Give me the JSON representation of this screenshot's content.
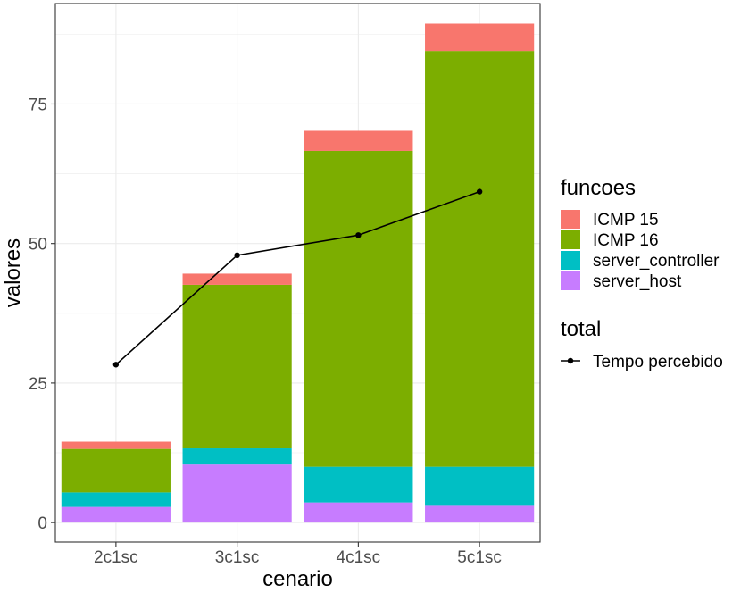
{
  "chart_data": {
    "type": "bar",
    "stacked": true,
    "xlabel": "cenario",
    "ylabel": "valores",
    "categories": [
      "2c1sc",
      "3c1sc",
      "4c1sc",
      "5c1sc"
    ],
    "ylim": [
      -3.5,
      93
    ],
    "yticks": [
      0,
      25,
      50,
      75
    ],
    "grid": true,
    "legend_position": "right",
    "series": [
      {
        "name": "server_host",
        "color": "#C77CFF",
        "values": [
          2.8,
          10.4,
          3.6,
          3.0
        ]
      },
      {
        "name": "server_controller",
        "color": "#00BFC4",
        "values": [
          2.6,
          2.9,
          6.4,
          7.0
        ]
      },
      {
        "name": "ICMP 16",
        "color": "#7CAE00",
        "values": [
          7.8,
          29.3,
          56.6,
          74.5
        ]
      },
      {
        "name": "ICMP 15",
        "color": "#F8766D",
        "values": [
          1.3,
          2.0,
          3.6,
          4.9
        ]
      }
    ],
    "line_series": {
      "name": "Tempo percebido",
      "color": "#000000",
      "values": [
        28.3,
        47.9,
        51.5,
        59.3
      ]
    },
    "legends": [
      {
        "title": "funcoes",
        "items": [
          "ICMP 15",
          "ICMP 16",
          "server_controller",
          "server_host"
        ]
      },
      {
        "title": "total",
        "items": [
          "Tempo percebido"
        ]
      }
    ]
  }
}
